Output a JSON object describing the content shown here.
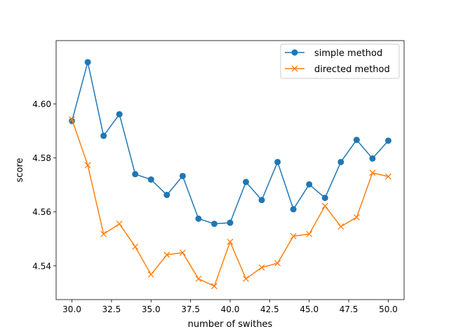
{
  "chart_data": {
    "type": "line",
    "title": "",
    "xlabel": "number of swithes",
    "ylabel": "score",
    "xlim": [
      29.0,
      51.0
    ],
    "ylim": [
      4.5275,
      4.6235
    ],
    "x_ticks": [
      30.0,
      32.5,
      35.0,
      37.5,
      40.0,
      42.5,
      45.0,
      47.5,
      50.0
    ],
    "x_tick_labels": [
      "30.0",
      "32.5",
      "35.0",
      "37.5",
      "40.0",
      "42.5",
      "45.0",
      "47.5",
      "50.0"
    ],
    "y_ticks": [
      4.54,
      4.56,
      4.58,
      4.6
    ],
    "y_tick_labels": [
      "4.54",
      "4.56",
      "4.58",
      "4.60"
    ],
    "grid": false,
    "legend_position": "top-right",
    "x": [
      30,
      31,
      32,
      33,
      34,
      35,
      36,
      37,
      38,
      39,
      40,
      41,
      42,
      43,
      44,
      45,
      46,
      47,
      48,
      49,
      50
    ],
    "series": [
      {
        "name": "simple method",
        "color": "#1f77b4",
        "marker": "circle",
        "values": [
          4.5937,
          4.6155,
          4.5882,
          4.5962,
          4.574,
          4.572,
          4.5663,
          4.5733,
          4.5575,
          4.5556,
          4.556,
          4.5711,
          4.5644,
          4.5785,
          4.561,
          4.5702,
          4.5652,
          4.5785,
          4.5867,
          4.5798,
          4.5864
        ]
      },
      {
        "name": "directed method",
        "color": "#ff7f0e",
        "marker": "x",
        "values": [
          4.5943,
          4.5773,
          4.5518,
          4.5556,
          4.5471,
          4.5368,
          4.5441,
          4.5449,
          4.5352,
          4.5325,
          4.5489,
          4.5352,
          4.5394,
          4.541,
          4.551,
          4.5518,
          4.5622,
          4.5546,
          4.558,
          4.5745,
          4.5731
        ]
      }
    ]
  }
}
